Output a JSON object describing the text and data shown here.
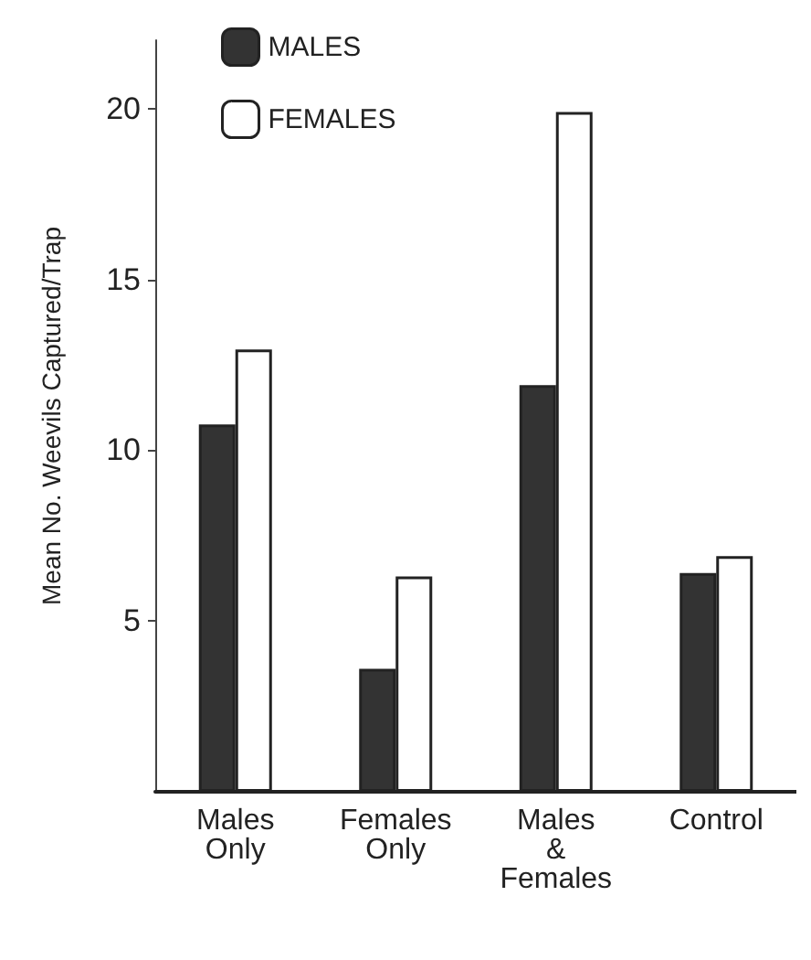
{
  "chart_data": {
    "type": "bar",
    "ylabel": "Mean No. Weevils Captured/Trap",
    "categories": [
      "Males\nOnly",
      "Females\nOnly",
      "Males\n&\nFemales",
      "Control"
    ],
    "series": [
      {
        "name": "MALES",
        "color": "#333333",
        "values": [
          10.75,
          3.6,
          11.9,
          6.4
        ]
      },
      {
        "name": "FEMALES",
        "color": "#ffffff",
        "values": [
          12.95,
          6.3,
          19.9,
          6.9
        ]
      }
    ],
    "ylim": [
      0,
      22
    ],
    "yticks": [
      5,
      10,
      15,
      20
    ],
    "grid": false,
    "legend": "top left"
  }
}
